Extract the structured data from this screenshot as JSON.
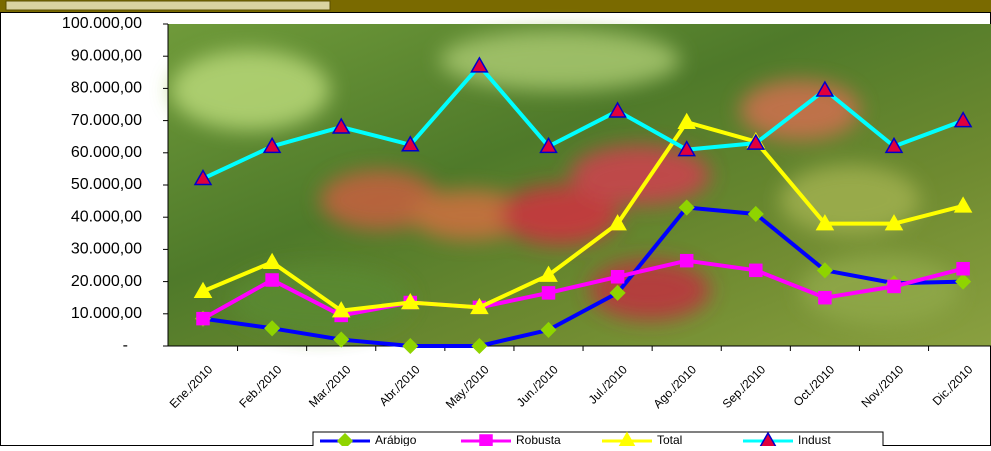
{
  "chart_data": {
    "type": "line",
    "categories": [
      "Ene./2010",
      "Feb./2010",
      "Mar./2010",
      "Abr./2010",
      "May./2010",
      "Jun./2010",
      "Jul./2010",
      "Ago./2010",
      "Sep./2010",
      "Oct./2010",
      "Nov./2010",
      "Dic./2010"
    ],
    "series": [
      {
        "name": "Arábigo",
        "color": "#0000ff",
        "marker": "diamond",
        "marker_color": "#8fd400",
        "values": [
          8500,
          5500,
          2000,
          0,
          0,
          5000,
          16500,
          43000,
          41000,
          23500,
          19500,
          20000
        ]
      },
      {
        "name": "Robusta",
        "color": "#ff00ff",
        "marker": "square",
        "marker_color": "#ff00ff",
        "values": [
          8500,
          20500,
          9500,
          13500,
          12000,
          16500,
          21500,
          26500,
          23500,
          15000,
          18500,
          24000
        ]
      },
      {
        "name": "Total",
        "color": "#ffff00",
        "marker": "triangle",
        "marker_color": "#ffff00",
        "values": [
          17000,
          26000,
          11000,
          13500,
          12000,
          22000,
          38000,
          69500,
          63500,
          38000,
          38000,
          43500
        ]
      },
      {
        "name": "Indust",
        "color": "#00ffff",
        "marker": "triangle",
        "marker_color": "#e0003c",
        "values": [
          52000,
          62000,
          68000,
          62500,
          87000,
          62000,
          73000,
          61000,
          63000,
          79500,
          62000,
          70000
        ]
      }
    ],
    "ylim": [
      0,
      100000
    ],
    "yticks": [
      {
        "value": 0,
        "label": "-"
      },
      {
        "value": 10000,
        "label": "10.000,00"
      },
      {
        "value": 20000,
        "label": "20.000,00"
      },
      {
        "value": 30000,
        "label": "30.000,00"
      },
      {
        "value": 40000,
        "label": "40.000,00"
      },
      {
        "value": 50000,
        "label": "50.000,00"
      },
      {
        "value": 60000,
        "label": "60.000,00"
      },
      {
        "value": 70000,
        "label": "70.000,00"
      },
      {
        "value": 80000,
        "label": "80.000,00"
      },
      {
        "value": 90000,
        "label": "90.000,00"
      },
      {
        "value": 100000,
        "label": "100.000,00"
      }
    ],
    "legend": "bottom"
  }
}
